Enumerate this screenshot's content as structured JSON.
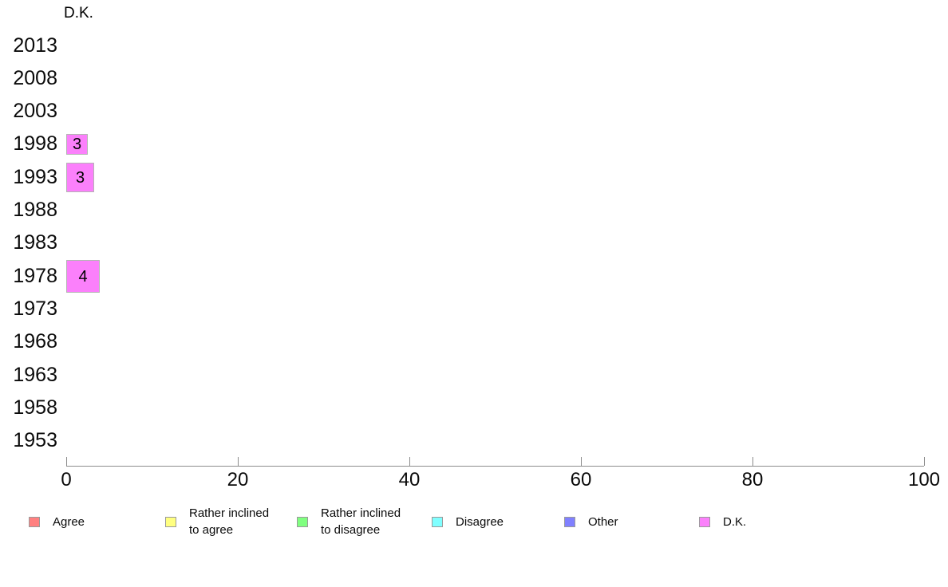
{
  "chart_data": {
    "type": "bar",
    "orientation": "horizontal",
    "title": "D.K.",
    "categories": [
      "2013",
      "2008",
      "2003",
      "1998",
      "1993",
      "1988",
      "1983",
      "1978",
      "1973",
      "1968",
      "1963",
      "1958",
      "1953"
    ],
    "values": [
      null,
      null,
      null,
      3,
      3,
      null,
      null,
      4,
      null,
      null,
      null,
      null,
      null
    ],
    "bar_labels": [
      null,
      null,
      null,
      "3",
      "3",
      null,
      null,
      "4",
      null,
      null,
      null,
      null,
      null
    ],
    "bar_lengths_units": [
      null,
      null,
      null,
      2.5,
      3.3,
      null,
      null,
      3.9,
      null,
      null,
      null,
      null,
      null
    ],
    "bar_thickness_px": [
      null,
      null,
      null,
      26,
      37,
      null,
      null,
      41,
      null,
      null,
      null,
      null,
      null
    ],
    "bar_color": "#FB80FB",
    "bar_border_color": "#b5b5b5",
    "xlabel": "",
    "ylabel": "",
    "xlim": [
      0,
      100
    ],
    "xticks": [
      0,
      20,
      40,
      60,
      80,
      100
    ],
    "grid": false,
    "legend_position": "bottom",
    "legend": [
      {
        "label": "Agree",
        "color": "#FF8080"
      },
      {
        "label": "Rather inclined\nto agree",
        "color": "#FFFF80"
      },
      {
        "label": "Rather inclined\nto disagree",
        "color": "#80FF80"
      },
      {
        "label": "Disagree",
        "color": "#80FFFF"
      },
      {
        "label": "Other",
        "color": "#8080FF"
      },
      {
        "label": "D.K.",
        "color": "#FB80FB"
      }
    ],
    "colors": {
      "axis": "#8c8c8c",
      "text": "#000000",
      "background": "#ffffff"
    }
  }
}
